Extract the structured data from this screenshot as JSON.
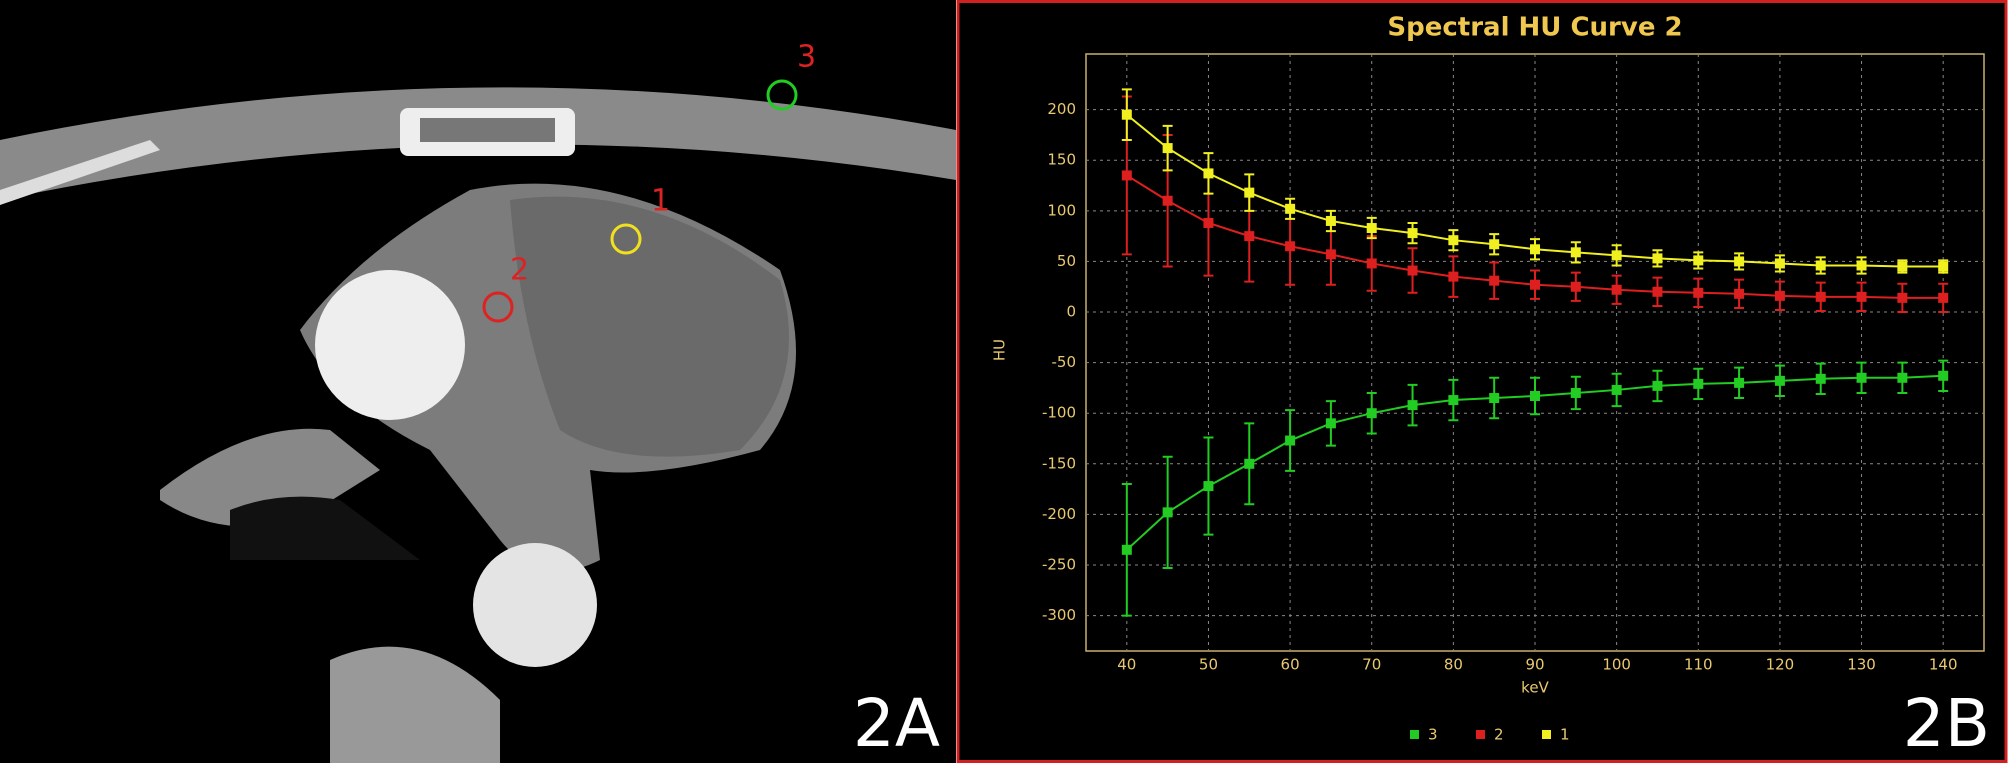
{
  "image": {
    "panel_label": "2A",
    "roi_labels": [
      "1",
      "2",
      "3"
    ]
  },
  "chart_panel_label": "2B",
  "chart_data": {
    "type": "line",
    "title": "Spectral HU Curve 2",
    "x_label": "keV",
    "y_label": "HU",
    "x": [
      40,
      45,
      50,
      55,
      60,
      65,
      70,
      75,
      80,
      85,
      90,
      95,
      100,
      105,
      110,
      115,
      120,
      125,
      130,
      135,
      140
    ],
    "series": [
      {
        "name": "3",
        "color": "#22cc22",
        "values": [
          -235,
          -198,
          -172,
          -150,
          -127,
          -110,
          -100,
          -92,
          -87,
          -85,
          -83,
          -80,
          -77,
          -73,
          -71,
          -70,
          -68,
          -66,
          -65,
          -65,
          -63
        ],
        "errors": [
          65,
          55,
          48,
          40,
          30,
          22,
          20,
          20,
          20,
          20,
          18,
          16,
          16,
          15,
          15,
          15,
          15,
          15,
          15,
          15,
          15
        ]
      },
      {
        "name": "2",
        "color": "#dd1f1f",
        "values": [
          135,
          110,
          88,
          75,
          65,
          57,
          48,
          41,
          35,
          31,
          27,
          25,
          22,
          20,
          19,
          18,
          16,
          15,
          15,
          14,
          14
        ],
        "errors": [
          78,
          65,
          52,
          45,
          38,
          30,
          27,
          22,
          20,
          18,
          14,
          14,
          14,
          14,
          14,
          14,
          14,
          14,
          14,
          14,
          14
        ]
      },
      {
        "name": "1",
        "color": "#f0f020",
        "values": [
          195,
          162,
          137,
          118,
          102,
          90,
          83,
          78,
          71,
          67,
          62,
          59,
          56,
          53,
          51,
          50,
          48,
          46,
          46,
          45,
          45
        ],
        "errors": [
          25,
          22,
          20,
          18,
          10,
          10,
          10,
          10,
          10,
          10,
          10,
          10,
          10,
          8,
          8,
          8,
          8,
          8,
          8,
          6,
          6
        ]
      }
    ],
    "xlim": [
      35,
      145
    ],
    "ylim": [
      -335,
      255
    ],
    "xticks": [
      40,
      50,
      60,
      70,
      80,
      90,
      100,
      110,
      120,
      130,
      140
    ],
    "yticks": [
      -300,
      -250,
      -200,
      -150,
      -100,
      -50,
      0,
      50,
      100,
      150,
      200
    ],
    "grid": true
  }
}
